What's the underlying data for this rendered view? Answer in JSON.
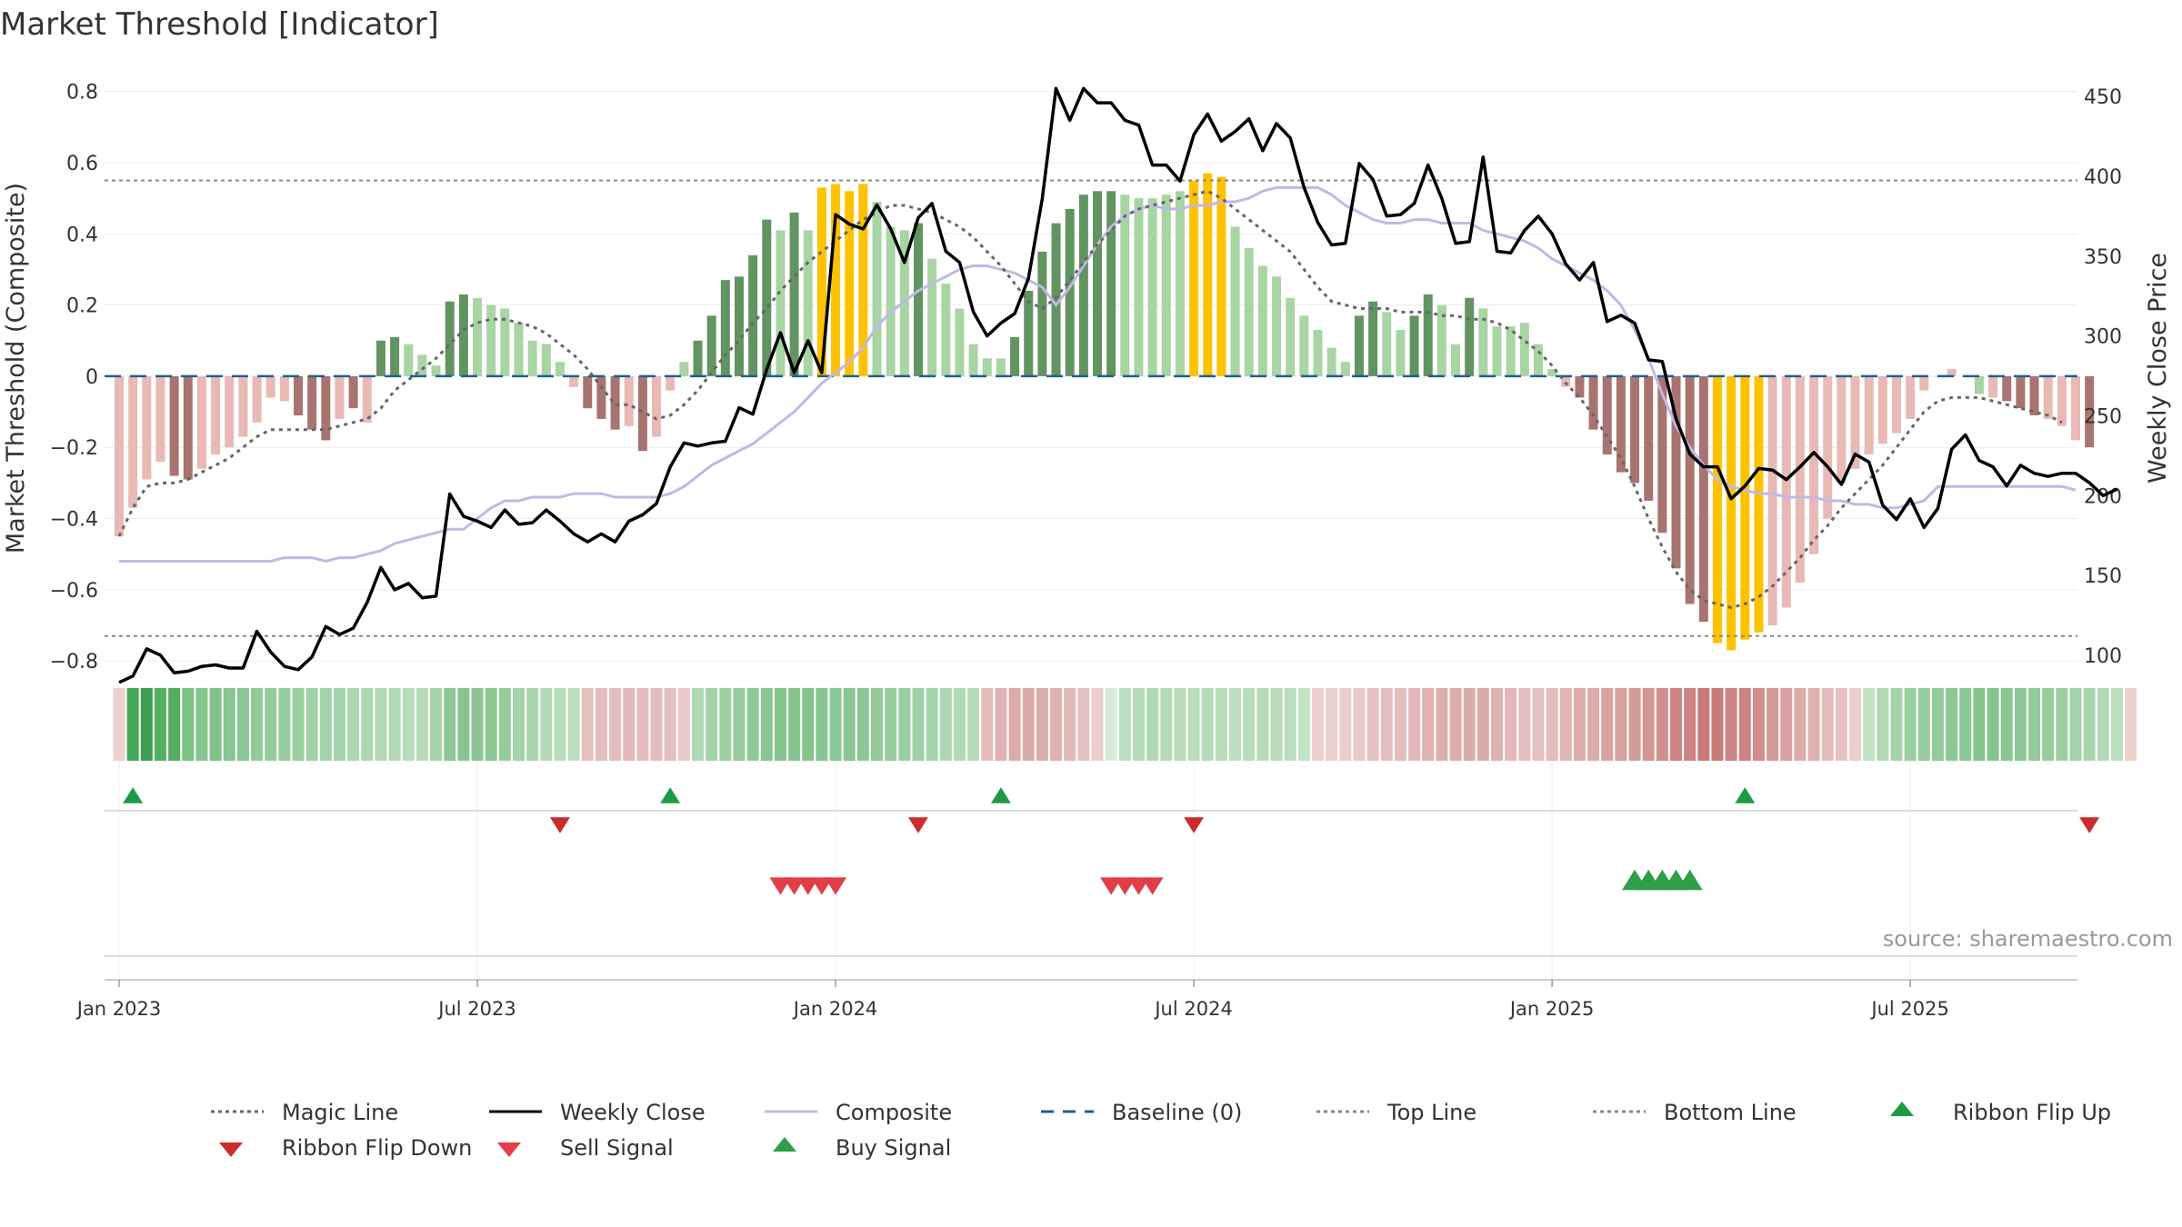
{
  "chart_data": {
    "type": "bar",
    "title": "Market Threshold [Indicator]",
    "ylabel": "Market Threshold (Composite)",
    "y2label": "Weekly Close Price",
    "ylim": [
      -0.82,
      0.84
    ],
    "y2lim": [
      92,
      462
    ],
    "yticks": [
      0.8,
      0.6,
      0.4,
      0.2,
      0,
      -0.2,
      -0.4,
      -0.6,
      -0.8
    ],
    "ytick_labels": [
      "0.8",
      "0.6",
      "0.4",
      "0.2",
      "0",
      "−0.2",
      "−0.4",
      "−0.6",
      "−0.8"
    ],
    "y2ticks": [
      450,
      400,
      350,
      300,
      250,
      200,
      150,
      100
    ],
    "y2tick_labels": [
      "450",
      "400",
      "350",
      "300",
      "250",
      "200",
      "150",
      "100"
    ],
    "xticks": [
      0,
      26,
      52,
      78,
      104,
      130
    ],
    "xtick_labels": [
      "Jan 2023",
      "Jul 2023",
      "Jan 2024",
      "Jul 2024",
      "Jan 2025",
      "Jul 2025"
    ],
    "top_line": 0.55,
    "bottom_line": -0.73,
    "source_text": "source: sharemaestro.com",
    "composite": [
      -0.45,
      -0.38,
      -0.29,
      -0.24,
      -0.28,
      -0.29,
      -0.26,
      -0.22,
      -0.2,
      -0.17,
      -0.14,
      -0.06,
      -0.07,
      -0.11,
      -0.15,
      -0.18,
      -0.13,
      -0.09,
      -0.13,
      -0.12,
      0,
      0,
      0,
      0,
      0,
      0,
      0,
      0,
      0,
      0,
      0,
      0,
      0,
      0,
      0,
      0,
      0,
      0,
      0,
      0,
      0,
      0,
      0,
      0,
      0,
      0,
      0,
      0,
      0,
      0,
      0,
      0,
      0,
      0,
      0,
      0,
      0,
      0,
      0,
      0,
      0,
      0,
      0,
      0,
      0,
      0,
      0,
      0,
      0,
      0,
      0,
      0,
      0,
      0,
      0,
      0,
      0,
      0,
      0,
      0,
      0,
      0,
      0,
      0,
      0,
      0,
      0,
      0,
      0,
      0,
      0,
      0,
      0,
      0,
      0,
      0,
      0,
      0,
      0,
      0,
      0,
      0,
      0,
      0,
      0,
      0,
      0,
      0,
      0,
      0,
      0,
      0,
      0,
      0,
      0,
      0,
      0,
      0,
      0,
      0,
      0,
      0,
      0,
      0,
      0,
      0,
      0,
      0,
      0,
      0,
      0,
      0,
      0,
      0,
      0,
      0,
      0,
      0,
      0,
      0,
      0,
      0,
      0,
      0,
      0,
      0,
      0,
      0,
      0,
      0
    ],
    "weekly_close": [
      83,
      87,
      104,
      100,
      89,
      90,
      93,
      94,
      92,
      92,
      115,
      102,
      93,
      91,
      99,
      118,
      113,
      117,
      133,
      155,
      141,
      145,
      136,
      137,
      201,
      187,
      184,
      180,
      191,
      182,
      183,
      191,
      184,
      176,
      171,
      176,
      171,
      184,
      188,
      195,
      218,
      233,
      231,
      233,
      234,
      255,
      251,
      279,
      302,
      277,
      297,
      277,
      376,
      370,
      367,
      382,
      367,
      346,
      374,
      383,
      353,
      346,
      315,
      300,
      308,
      314,
      336,
      386,
      455,
      435,
      455,
      446,
      446,
      435,
      432,
      407,
      407,
      397,
      426,
      439,
      422,
      428,
      436,
      416,
      433,
      424,
      393,
      371,
      357,
      358,
      408,
      398,
      375,
      376,
      383,
      407,
      386,
      358,
      359,
      412,
      353,
      352,
      366,
      375,
      364,
      345,
      335,
      346,
      309,
      313,
      308,
      285,
      284,
      248,
      226,
      218,
      218,
      198,
      206,
      217,
      216,
      210,
      218,
      227,
      218,
      207,
      226,
      221,
      194,
      185,
      198,
      180,
      192,
      229,
      238,
      222,
      218,
      206,
      219,
      214,
      212,
      214,
      214,
      208,
      200,
      204
    ],
    "magic_line": [
      -0.45,
      -0.37,
      -0.31,
      -0.3,
      -0.3,
      -0.29,
      -0.27,
      -0.25,
      -0.23,
      -0.2,
      -0.17,
      -0.15,
      -0.15,
      -0.15,
      -0.15,
      -0.15,
      -0.14,
      -0.13,
      -0.12,
      -0.09,
      -0.04,
      -0.01,
      0.02,
      0.05,
      0.09,
      0.13,
      0.15,
      0.16,
      0.16,
      0.15,
      0.14,
      0.12,
      0.09,
      0.06,
      0.02,
      -0.03,
      -0.08,
      -0.08,
      -0.1,
      -0.12,
      -0.11,
      -0.08,
      -0.04,
      0.01,
      0.06,
      0.1,
      0.15,
      0.19,
      0.24,
      0.28,
      0.32,
      0.35,
      0.38,
      0.41,
      0.44,
      0.46,
      0.48,
      0.48,
      0.47,
      0.46,
      0.44,
      0.42,
      0.39,
      0.35,
      0.31,
      0.26,
      0.21,
      0.19,
      0.22,
      0.27,
      0.32,
      0.37,
      0.41,
      0.45,
      0.47,
      0.48,
      0.49,
      0.5,
      0.51,
      0.52,
      0.5,
      0.47,
      0.44,
      0.41,
      0.38,
      0.35,
      0.3,
      0.25,
      0.21,
      0.2,
      0.19,
      0.19,
      0.19,
      0.18,
      0.18,
      0.18,
      0.17,
      0.17,
      0.16,
      0.16,
      0.15,
      0.13,
      0.1,
      0.07,
      0.03,
      -0.02,
      -0.06,
      -0.11,
      -0.17,
      -0.23,
      -0.31,
      -0.4,
      -0.48,
      -0.55,
      -0.6,
      -0.63,
      -0.64,
      -0.65,
      -0.64,
      -0.62,
      -0.59,
      -0.55,
      -0.51,
      -0.46,
      -0.42,
      -0.37,
      -0.33,
      -0.29,
      -0.25,
      -0.2,
      -0.15,
      -0.1,
      -0.07,
      -0.06,
      -0.06,
      -0.06,
      -0.07,
      -0.08,
      -0.09,
      -0.1,
      -0.11,
      -0.13
    ],
    "composite_line": [
      -0.52,
      -0.52,
      -0.52,
      -0.52,
      -0.52,
      -0.52,
      -0.52,
      -0.52,
      -0.52,
      -0.52,
      -0.52,
      -0.52,
      -0.51,
      -0.51,
      -0.51,
      -0.52,
      -0.51,
      -0.51,
      -0.5,
      -0.49,
      -0.47,
      -0.46,
      -0.45,
      -0.44,
      -0.43,
      -0.43,
      -0.4,
      -0.37,
      -0.35,
      -0.35,
      -0.34,
      -0.34,
      -0.34,
      -0.33,
      -0.33,
      -0.33,
      -0.34,
      -0.34,
      -0.34,
      -0.34,
      -0.33,
      -0.31,
      -0.28,
      -0.25,
      -0.23,
      -0.21,
      -0.19,
      -0.16,
      -0.13,
      -0.1,
      -0.06,
      -0.02,
      0.01,
      0.04,
      0.08,
      0.14,
      0.18,
      0.21,
      0.24,
      0.26,
      0.28,
      0.3,
      0.31,
      0.31,
      0.3,
      0.29,
      0.27,
      0.25,
      0.2,
      0.25,
      0.31,
      0.37,
      0.42,
      0.45,
      0.47,
      0.48,
      0.47,
      0.47,
      0.48,
      0.48,
      0.49,
      0.49,
      0.5,
      0.52,
      0.53,
      0.53,
      0.53,
      0.53,
      0.51,
      0.48,
      0.46,
      0.44,
      0.43,
      0.43,
      0.44,
      0.44,
      0.43,
      0.43,
      0.43,
      0.41,
      0.4,
      0.39,
      0.38,
      0.36,
      0.33,
      0.31,
      0.29,
      0.27,
      0.24,
      0.2,
      0.13,
      0.05,
      -0.05,
      -0.14,
      -0.2,
      -0.25,
      -0.29,
      -0.31,
      -0.32,
      -0.33,
      -0.33,
      -0.34,
      -0.34,
      -0.34,
      -0.35,
      -0.35,
      -0.36,
      -0.36,
      -0.37,
      -0.37,
      -0.36,
      -0.35,
      -0.31,
      -0.31,
      -0.31,
      -0.31,
      -0.31,
      -0.31,
      -0.31,
      -0.31,
      -0.31,
      -0.31,
      -0.32
    ],
    "bars": [
      -0.45,
      -0.37,
      -0.29,
      -0.24,
      -0.28,
      -0.29,
      -0.26,
      -0.22,
      -0.2,
      -0.17,
      -0.13,
      -0.06,
      -0.07,
      -0.11,
      -0.15,
      -0.18,
      -0.12,
      -0.09,
      -0.13,
      0.1,
      0.11,
      0.09,
      0.06,
      0.03,
      0.21,
      0.23,
      0.22,
      0.2,
      0.19,
      0.15,
      0.1,
      0.09,
      0.04,
      -0.03,
      -0.09,
      -0.12,
      -0.15,
      -0.14,
      -0.21,
      -0.17,
      -0.04,
      0.04,
      0.1,
      0.17,
      0.27,
      0.28,
      0.34,
      0.44,
      0.41,
      0.46,
      0.41,
      0.53,
      0.54,
      0.52,
      0.54,
      0.49,
      0.42,
      0.41,
      0.43,
      0.33,
      0.26,
      0.19,
      0.09,
      0.05,
      0.05,
      0.11,
      0.24,
      0.35,
      0.43,
      0.47,
      0.51,
      0.52,
      0.52,
      0.51,
      0.5,
      0.5,
      0.51,
      0.52,
      0.55,
      0.57,
      0.56,
      0.42,
      0.36,
      0.31,
      0.28,
      0.22,
      0.17,
      0.13,
      0.08,
      0.04,
      0.17,
      0.21,
      0.18,
      0.13,
      0.17,
      0.23,
      0.2,
      0.09,
      0.22,
      0.19,
      0.14,
      0.14,
      0.15,
      0.09,
      0.02,
      -0.03,
      -0.06,
      -0.15,
      -0.22,
      -0.27,
      -0.3,
      -0.35,
      -0.44,
      -0.54,
      -0.64,
      -0.69,
      -0.75,
      -0.77,
      -0.74,
      -0.72,
      -0.7,
      -0.65,
      -0.58,
      -0.5,
      -0.4,
      -0.3,
      -0.26,
      -0.22,
      -0.19,
      -0.16,
      -0.12,
      -0.04,
      0,
      0.02,
      0,
      -0.05,
      -0.06,
      -0.07,
      -0.09,
      -0.11,
      -0.12,
      -0.14,
      -0.18,
      -0.2
    ],
    "bar_colors": [
      "#e8b9b5",
      "#e8b9b5",
      "#e8b9b5",
      "#e8b9b5",
      "#a87470",
      "#a87470",
      "#e8b9b5",
      "#e8b9b5",
      "#e8b9b5",
      "#e8b9b5",
      "#e8b9b5",
      "#e8b9b5",
      "#e8b9b5",
      "#a87470",
      "#a87470",
      "#a87470",
      "#e8b9b5",
      "#a87470",
      "#e8b9b5",
      "#629462",
      "#629462",
      "#a8d5a3",
      "#a8d5a3",
      "#a8d5a3",
      "#629462",
      "#629462",
      "#a8d5a3",
      "#a8d5a3",
      "#a8d5a3",
      "#a8d5a3",
      "#a8d5a3",
      "#a8d5a3",
      "#a8d5a3",
      "#e8b9b5",
      "#a87470",
      "#a87470",
      "#a87470",
      "#e8b9b5",
      "#a87470",
      "#e8b9b5",
      "#e8b9b5",
      "#a8d5a3",
      "#629462",
      "#629462",
      "#629462",
      "#629462",
      "#629462",
      "#629462",
      "#a8d5a3",
      "#629462",
      "#a8d5a3",
      "#ffc200",
      "#ffc200",
      "#ffc200",
      "#ffc200",
      "#a8d5a3",
      "#a8d5a3",
      "#a8d5a3",
      "#629462",
      "#a8d5a3",
      "#a8d5a3",
      "#a8d5a3",
      "#a8d5a3",
      "#a8d5a3",
      "#a8d5a3",
      "#629462",
      "#629462",
      "#629462",
      "#629462",
      "#629462",
      "#629462",
      "#629462",
      "#629462",
      "#a8d5a3",
      "#a8d5a3",
      "#a8d5a3",
      "#a8d5a3",
      "#a8d5a3",
      "#ffc200",
      "#ffc200",
      "#ffc200",
      "#a8d5a3",
      "#a8d5a3",
      "#a8d5a3",
      "#a8d5a3",
      "#a8d5a3",
      "#a8d5a3",
      "#a8d5a3",
      "#a8d5a3",
      "#a8d5a3",
      "#629462",
      "#629462",
      "#a8d5a3",
      "#a8d5a3",
      "#629462",
      "#629462",
      "#a8d5a3",
      "#a8d5a3",
      "#629462",
      "#a8d5a3",
      "#a8d5a3",
      "#a8d5a3",
      "#a8d5a3",
      "#a8d5a3",
      "#a8d5a3",
      "#e8b9b5",
      "#a87470",
      "#a87470",
      "#a87470",
      "#a87470",
      "#a87470",
      "#a87470",
      "#a87470",
      "#a87470",
      "#a87470",
      "#a87470",
      "#ffc200",
      "#ffc200",
      "#ffc200",
      "#ffc200",
      "#e8b9b5",
      "#e8b9b5",
      "#e8b9b5",
      "#e8b9b5",
      "#e8b9b5",
      "#e8b9b5",
      "#e8b9b5",
      "#e8b9b5",
      "#e8b9b5",
      "#e8b9b5",
      "#e8b9b5",
      "#e8b9b5",
      "#e8b9b5",
      "#e8b9b5",
      "#e8b9b5",
      "#a8d5a3",
      "#e8b9b5",
      "#a87470",
      "#a87470",
      "#a87470",
      "#e8b9b5",
      "#e8b9b5",
      "#e8b9b5",
      "#a87470",
      "#a87470",
      "#a87470"
    ],
    "ribbon_colors": [
      "#eed0cf",
      "#48a857",
      "#3f9f50",
      "#54b061",
      "#55ad5f",
      "#7cc184",
      "#86c48e",
      "#80c187",
      "#88c590",
      "#8ac792",
      "#92cb98",
      "#92cb99",
      "#97cd9e",
      "#99cfa0",
      "#a0d1a5",
      "#a3d2a8",
      "#a5d4aa",
      "#acd7b0",
      "#acd7b1",
      "#b1d9b5",
      "#b1d9b5",
      "#b6dcb9",
      "#b6dcba",
      "#a7d3ab",
      "#8ec796",
      "#89c490",
      "#8bc591",
      "#8dc893",
      "#96cc9c",
      "#a4d3a9",
      "#a9d5ad",
      "#b2dab6",
      "#b7ddba",
      "#bcdfbf",
      "#e6c1c0",
      "#e4bebd",
      "#e3bcbb",
      "#e2b9b8",
      "#e3bcbb",
      "#e4bebd",
      "#e4bfbe",
      "#e9cac9",
      "#b1d9b5",
      "#a4d3a9",
      "#9ccfa2",
      "#96cc9c",
      "#90c997",
      "#8ac792",
      "#86c48e",
      "#86c48e",
      "#86c48e",
      "#88c590",
      "#8ac792",
      "#8bc591",
      "#8ec796",
      "#92cb98",
      "#96cc9c",
      "#99cfa0",
      "#a0d1a5",
      "#a5d4aa",
      "#acd7b0",
      "#b1d9b5",
      "#b6dcb9",
      "#e3bcbb",
      "#dfb1b0",
      "#dcacab",
      "#dcacab",
      "#dcacab",
      "#dfb1b0",
      "#e2b9b8",
      "#e5c3c2",
      "#ebcecd",
      "#d5ebd7",
      "#bcdfbf",
      "#b5dbb8",
      "#b1d9b5",
      "#b5dbb8",
      "#b7ddba",
      "#b7ddba",
      "#b5dbb8",
      "#b7ddba",
      "#bcdfbf",
      "#b8ddbb",
      "#b5dbb8",
      "#b7ddba",
      "#bcdfbf",
      "#c3e3c6",
      "#eed0cf",
      "#eccfce",
      "#ebcecd",
      "#e9cac9",
      "#e6c1c0",
      "#e4bebd",
      "#e3bcbb",
      "#e2b9b8",
      "#dfb1b0",
      "#ddaeac",
      "#ddaeac",
      "#dcacab",
      "#dcacab",
      "#dfb1b0",
      "#e2b9b8",
      "#e4bebd",
      "#e6c1c0",
      "#e3bcbb",
      "#e0b5b3",
      "#ddaeac",
      "#dcacab",
      "#d9a3a1",
      "#d8a09e",
      "#d49a98",
      "#d39795",
      "#d18e8c",
      "#cd8482",
      "#cd8482",
      "#c97b78",
      "#c97b78",
      "#cd8482",
      "#cd8482",
      "#d18e8c",
      "#d49a98",
      "#d8a09e",
      "#dcacab",
      "#dfb1b0",
      "#e3bcbb",
      "#e6c1c0",
      "#ebcecd",
      "#c3e3c6",
      "#b1d9b5",
      "#a4d3a9",
      "#99cfa0",
      "#96cc9c",
      "#92cb98",
      "#8ec796",
      "#8ac792",
      "#86c48e",
      "#86c48e",
      "#8ac792",
      "#8ec796",
      "#92cb98",
      "#96cc9c",
      "#9ccfa2",
      "#a4d3a9",
      "#a9d5ad",
      "#b1d9b5",
      "#bcdfbf",
      "#eed0cf"
    ],
    "ribbon_flip_up": [
      1,
      40,
      64,
      118
    ],
    "ribbon_flip_down": [
      32,
      58,
      78,
      143
    ],
    "sell_signals": [
      48,
      49,
      50,
      51,
      52,
      72,
      73,
      74,
      75
    ],
    "buy_signals": [
      110,
      111,
      112,
      113,
      114
    ]
  },
  "legend": [
    {
      "label": "Magic Line",
      "kind": "dotted",
      "color": "#666666"
    },
    {
      "label": "Weekly Close",
      "kind": "solid",
      "color": "#000000"
    },
    {
      "label": "Composite",
      "kind": "solid",
      "color": "#c0b8e8"
    },
    {
      "label": "Baseline (0)",
      "kind": "dashed",
      "color": "#1f5f8b"
    },
    {
      "label": "Top Line",
      "kind": "dotted",
      "color": "#888888"
    },
    {
      "label": "Bottom Line",
      "kind": "dotted",
      "color": "#888888"
    },
    {
      "label": "Ribbon Flip Up",
      "kind": "tri-up",
      "color": "#1e9a45"
    },
    {
      "label": "Ribbon Flip Down",
      "kind": "tri-down",
      "color": "#cc2b2b"
    },
    {
      "label": "Sell Signal",
      "kind": "tri-down",
      "color": "#e23d48"
    },
    {
      "label": "Buy Signal",
      "kind": "tri-up",
      "color": "#2f9e49"
    }
  ]
}
